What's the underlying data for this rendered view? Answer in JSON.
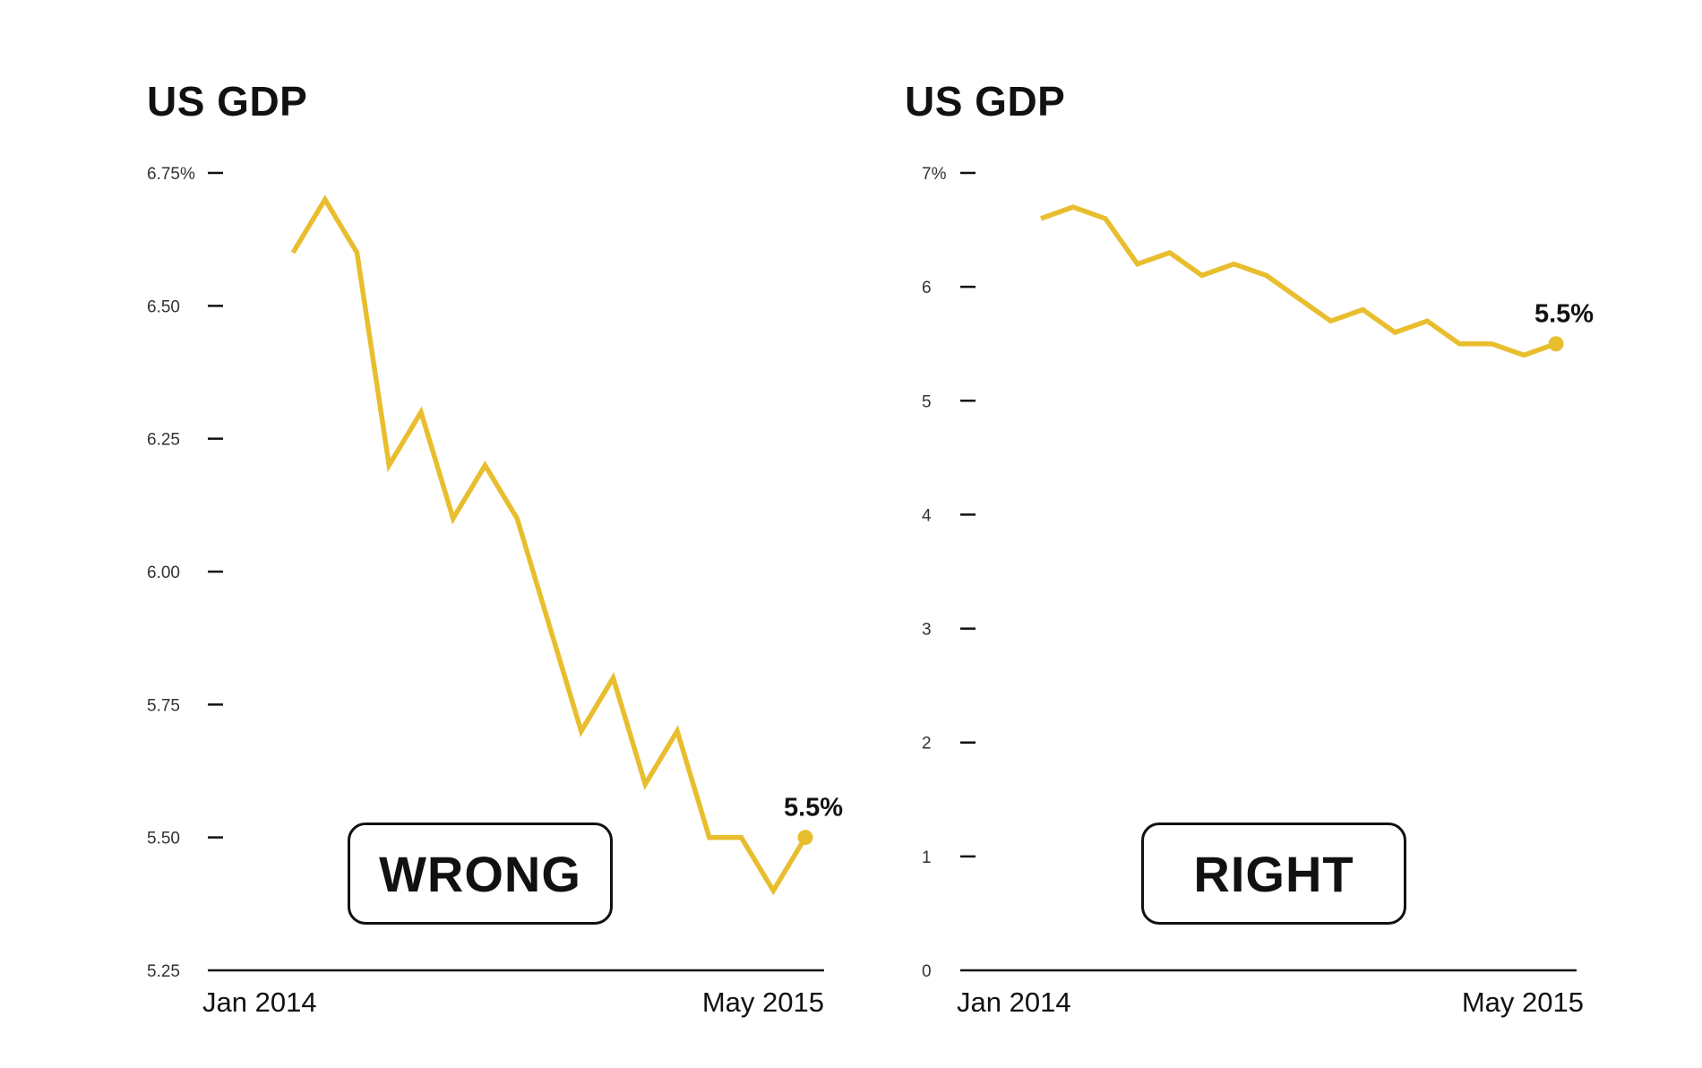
{
  "colors": {
    "line": "#E9BE2E",
    "axis": "#111111",
    "text": "#111111"
  },
  "chart_data": [
    {
      "type": "line",
      "title": "US GDP",
      "verdict": "WRONG",
      "x_labels": [
        "Jan 2014",
        "May 2015"
      ],
      "y_ticks": [
        5.25,
        5.5,
        5.75,
        6.0,
        6.25,
        6.5,
        6.75
      ],
      "y_tick_labels": [
        "5.25",
        "5.50",
        "5.75",
        "6.00",
        "6.25",
        "6.50",
        "6.75%"
      ],
      "ylim": [
        5.25,
        6.75
      ],
      "values": [
        6.6,
        6.7,
        6.6,
        6.2,
        6.3,
        6.1,
        6.2,
        6.1,
        5.9,
        5.7,
        5.8,
        5.6,
        5.7,
        5.5,
        5.5,
        5.4,
        5.5
      ],
      "end_label": "5.5%",
      "grid": false
    },
    {
      "type": "line",
      "title": "US GDP",
      "verdict": "RIGHT",
      "x_labels": [
        "Jan 2014",
        "May 2015"
      ],
      "y_ticks": [
        0,
        1,
        2,
        3,
        4,
        5,
        6,
        7
      ],
      "y_tick_labels": [
        "0",
        "1",
        "2",
        "3",
        "4",
        "5",
        "6",
        "7%"
      ],
      "ylim": [
        0,
        7
      ],
      "values": [
        6.6,
        6.7,
        6.6,
        6.2,
        6.3,
        6.1,
        6.2,
        6.1,
        5.9,
        5.7,
        5.8,
        5.6,
        5.7,
        5.5,
        5.5,
        5.4,
        5.5
      ],
      "end_label": "5.5%",
      "grid": false
    }
  ]
}
